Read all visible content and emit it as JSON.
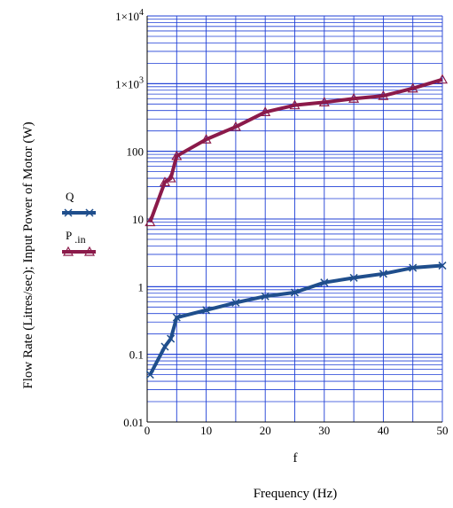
{
  "chart_data": {
    "type": "line",
    "xlabel": "f",
    "xtitle": "Frequency (Hz)",
    "ylabel": "Flow Rate (Litres/sec); Input Power of Motor (W)",
    "xlim": [
      0,
      50
    ],
    "ylim": [
      0.01,
      10000
    ],
    "yscale": "log",
    "grid": true,
    "legend_position": "left",
    "x_ticks": [
      "0",
      "10",
      "20",
      "30",
      "40",
      "50"
    ],
    "y_ticks": [
      {
        "value": 0.01,
        "label": "0.01",
        "exp": ""
      },
      {
        "value": 0.1,
        "label": "0.1",
        "exp": ""
      },
      {
        "value": 1,
        "label": "1",
        "exp": ""
      },
      {
        "value": 10,
        "label": "10",
        "exp": ""
      },
      {
        "value": 100,
        "label": "100",
        "exp": ""
      },
      {
        "value": 1000,
        "label": "1×10",
        "exp": "3"
      },
      {
        "value": 10000,
        "label": "1×10",
        "exp": "4"
      }
    ],
    "series": [
      {
        "name": "Q",
        "color": "#1f4e8c",
        "marker": "x",
        "x": [
          0.5,
          3,
          4,
          5,
          10,
          15,
          20,
          25,
          30,
          35,
          40,
          45,
          50
        ],
        "y": [
          0.05,
          0.13,
          0.17,
          0.35,
          0.45,
          0.58,
          0.72,
          0.82,
          1.15,
          1.35,
          1.55,
          1.9,
          2.05
        ]
      },
      {
        "name": "P.in",
        "color": "#8b1a4a",
        "marker": "triangle",
        "x": [
          0.5,
          3,
          4,
          5,
          10,
          15,
          20,
          25,
          30,
          35,
          40,
          45,
          50
        ],
        "y": [
          9,
          35,
          40,
          85,
          150,
          230,
          380,
          480,
          530,
          600,
          660,
          850,
          1150
        ]
      }
    ]
  }
}
